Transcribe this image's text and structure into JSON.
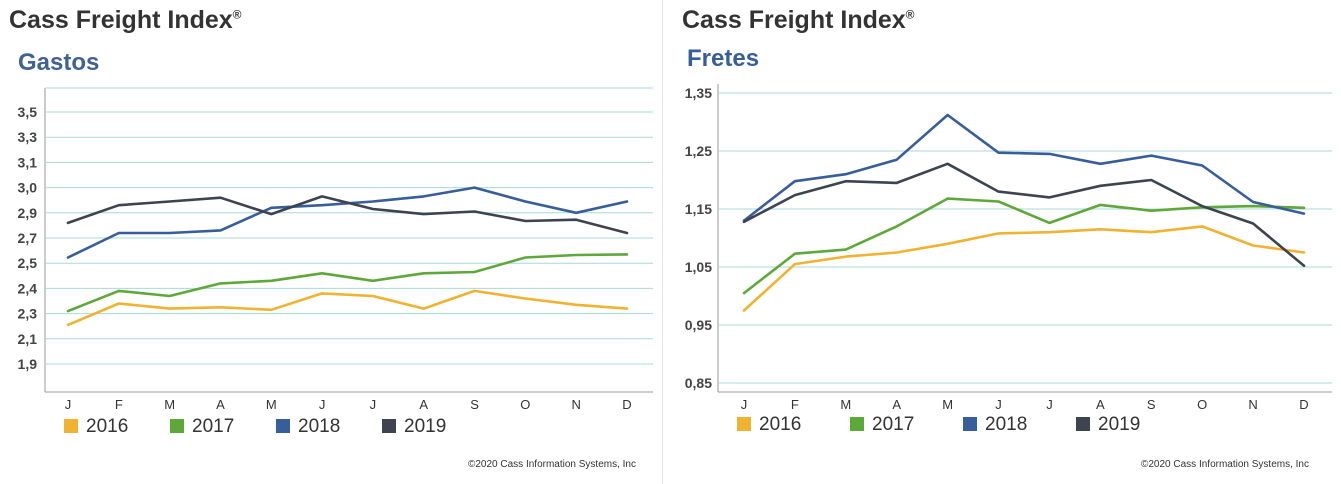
{
  "panels": [
    {
      "brand": "Cass Freight Index",
      "brand_mark": "®",
      "copyright": "©2020 Cass Information Systems, Inc",
      "chart_data": {
        "type": "line",
        "title": "Gastos",
        "categories": [
          "J",
          "F",
          "M",
          "A",
          "M",
          "J",
          "J",
          "A",
          "S",
          "O",
          "N",
          "D"
        ],
        "y_ticks": [
          "1,9",
          "2,1",
          "2,3",
          "2,4",
          "2,5",
          "2,7",
          "2,9",
          "3,0",
          "3,1",
          "3,3",
          "3,5"
        ],
        "legend_position": "bottom",
        "grid": true,
        "series": [
          {
            "name": "2016",
            "color": "#f0b331",
            "values": [
              2.21,
              2.34,
              2.32,
              2.325,
              2.315,
              2.38,
              2.37,
              2.32,
              2.39,
              2.36,
              2.335,
              2.32
            ]
          },
          {
            "name": "2017",
            "color": "#5ea83a",
            "values": [
              2.31,
              2.39,
              2.37,
              2.42,
              2.43,
              2.46,
              2.43,
              2.46,
              2.465,
              2.545,
              2.565,
              2.57
            ]
          },
          {
            "name": "2018",
            "color": "#375e9b",
            "values": [
              2.545,
              2.74,
              2.74,
              2.76,
              2.92,
              2.93,
              2.945,
              2.965,
              3.0,
              2.945,
              2.9,
              2.945
            ]
          },
          {
            "name": "2019",
            "color": "#3d4450",
            "values": [
              2.82,
              2.93,
              2.945,
              2.96,
              2.89,
              2.965,
              2.915,
              2.89,
              2.905,
              2.835,
              2.845,
              2.74
            ]
          }
        ]
      }
    },
    {
      "brand": "Cass Freight Index",
      "brand_mark": "®",
      "copyright": "©2020 Cass Information Systems, Inc",
      "chart_data": {
        "type": "line",
        "title": "Fretes",
        "categories": [
          "J",
          "F",
          "M",
          "A",
          "M",
          "J",
          "J",
          "A",
          "S",
          "O",
          "N",
          "D"
        ],
        "y_ticks": [
          "0,85",
          "0,95",
          "1,05",
          "1,15",
          "1,25",
          "1,35"
        ],
        "legend_position": "bottom",
        "grid": true,
        "series": [
          {
            "name": "2016",
            "color": "#f0b331",
            "values": [
              0.975,
              1.055,
              1.068,
              1.075,
              1.09,
              1.108,
              1.11,
              1.115,
              1.11,
              1.12,
              1.087,
              1.075
            ]
          },
          {
            "name": "2017",
            "color": "#5ea83a",
            "values": [
              1.005,
              1.073,
              1.08,
              1.12,
              1.168,
              1.163,
              1.126,
              1.157,
              1.147,
              1.153,
              1.155,
              1.152
            ]
          },
          {
            "name": "2018",
            "color": "#375e9b",
            "values": [
              1.13,
              1.198,
              1.21,
              1.235,
              1.312,
              1.247,
              1.245,
              1.228,
              1.242,
              1.225,
              1.162,
              1.142
            ]
          },
          {
            "name": "2019",
            "color": "#3d4450",
            "values": [
              1.128,
              1.174,
              1.198,
              1.195,
              1.228,
              1.18,
              1.17,
              1.19,
              1.2,
              1.155,
              1.125,
              1.052
            ]
          }
        ]
      }
    }
  ]
}
